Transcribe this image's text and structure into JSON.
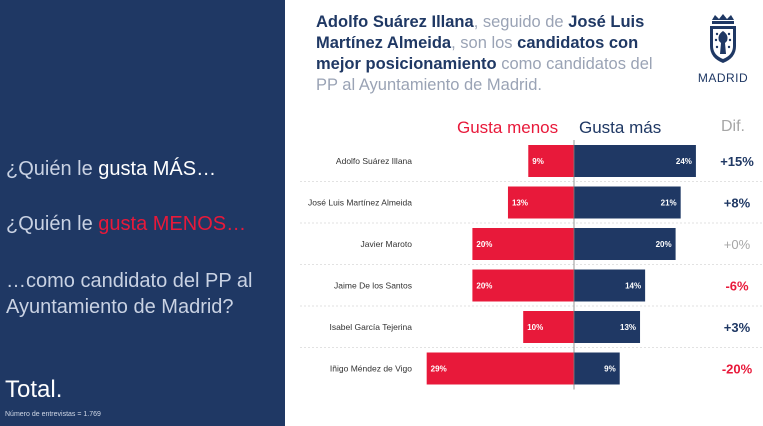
{
  "left_panel": {
    "q1_prefix": "¿Quién le ",
    "q1_strong": "gusta MÁS…",
    "q2_prefix": "¿Quién le ",
    "q2_strong": "gusta MENOS…",
    "q3": "…como candidato del PP al Ayuntamiento de Madrid?",
    "total": "Total.",
    "sample": "Número de entrevistas = 1.769"
  },
  "headline": {
    "p1": "Adolfo Suárez Illana",
    "p2": ", seguido de ",
    "p3": "José Luis Martínez Almeida",
    "p4": ", son los ",
    "p5": "candidatos con mejor posicionamiento",
    "p6": " como candidatos del PP al Ayuntamiento de Madrid."
  },
  "logo": {
    "text": "MADRID"
  },
  "colors": {
    "navy": "#1f3864",
    "red": "#e8193a",
    "gray": "#a6a6a6"
  },
  "chart_data": {
    "type": "bar",
    "orientation": "horizontal-diverging",
    "headers": {
      "less": "Gusta menos",
      "more": "Gusta más",
      "dif": "Dif."
    },
    "categories": [
      "Adolfo Suárez Illana",
      "José Luis Martínez Almeida",
      "Javier Maroto",
      "Jaime De los Santos",
      "Isabel García Tejerina",
      "Iñigo Méndez de Vigo"
    ],
    "series": [
      {
        "name": "Gusta menos",
        "values": [
          9,
          13,
          20,
          20,
          10,
          29
        ],
        "labels": [
          "9%",
          "13%",
          "20%",
          "20%",
          "10%",
          "29%"
        ],
        "color": "#e8193a"
      },
      {
        "name": "Gusta más",
        "values": [
          24,
          21,
          20,
          14,
          13,
          9
        ],
        "labels": [
          "24%",
          "21%",
          "20%",
          "14%",
          "13%",
          "9%"
        ],
        "color": "#1f3864"
      }
    ],
    "dif": [
      "+15%",
      "+8%",
      "+0%",
      "-6%",
      "+3%",
      "-20%"
    ],
    "dif_colors": [
      "#1f3864",
      "#1f3864",
      "#a6a6a6",
      "#e8193a",
      "#1f3864",
      "#e8193a"
    ],
    "unit": "%"
  }
}
